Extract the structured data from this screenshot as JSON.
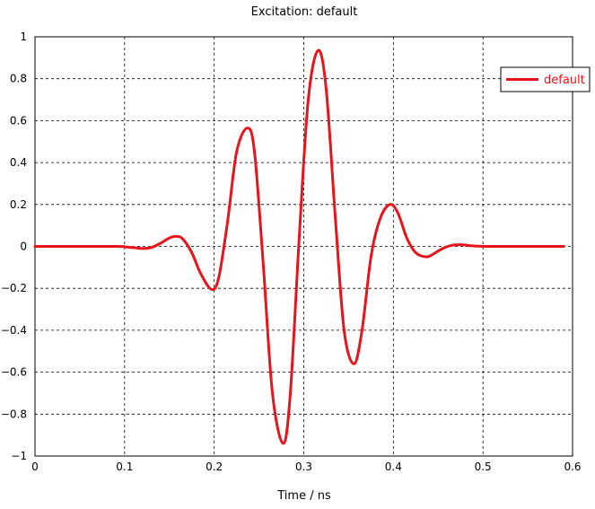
{
  "chart_data": {
    "type": "line",
    "title": "Excitation: default",
    "xlabel": "Time / ns",
    "ylabel": "",
    "xlim": [
      0,
      0.6
    ],
    "ylim": [
      -1,
      1
    ],
    "x_ticks": [
      "0",
      "0.1",
      "0.2",
      "0.3",
      "0.4",
      "0.5",
      "0.6"
    ],
    "y_ticks": [
      "1",
      "0.8",
      "0.6",
      "0.4",
      "0.2",
      "0",
      "−0.2",
      "−0.4",
      "−0.6",
      "−0.8",
      "−1"
    ],
    "grid": true,
    "legend": {
      "placement": "top-right",
      "entries": [
        "default"
      ]
    },
    "series": [
      {
        "name": "default",
        "color": "#e8141b",
        "x": [
          0,
          0.09,
          0.1,
          0.11,
          0.12,
          0.13,
          0.14,
          0.15,
          0.158,
          0.165,
          0.175,
          0.185,
          0.197,
          0.205,
          0.215,
          0.225,
          0.237,
          0.245,
          0.255,
          0.265,
          0.277,
          0.285,
          0.295,
          0.305,
          0.316,
          0.325,
          0.335,
          0.345,
          0.356,
          0.365,
          0.375,
          0.385,
          0.396,
          0.405,
          0.415,
          0.425,
          0.437,
          0.445,
          0.455,
          0.465,
          0.475,
          0.485,
          0.495,
          0.51,
          0.53,
          0.56,
          0.59
        ],
        "y": [
          0,
          0,
          -0.002,
          -0.006,
          -0.01,
          -0.005,
          0.015,
          0.04,
          0.048,
          0.035,
          -0.03,
          -0.13,
          -0.205,
          -0.15,
          0.12,
          0.45,
          0.565,
          0.45,
          -0.1,
          -0.7,
          -0.94,
          -0.7,
          0.05,
          0.7,
          0.935,
          0.75,
          0.15,
          -0.4,
          -0.56,
          -0.4,
          -0.05,
          0.13,
          0.2,
          0.16,
          0.04,
          -0.03,
          -0.05,
          -0.035,
          -0.01,
          0.005,
          0.008,
          0.004,
          0.001,
          0,
          0,
          0,
          0
        ]
      }
    ]
  }
}
